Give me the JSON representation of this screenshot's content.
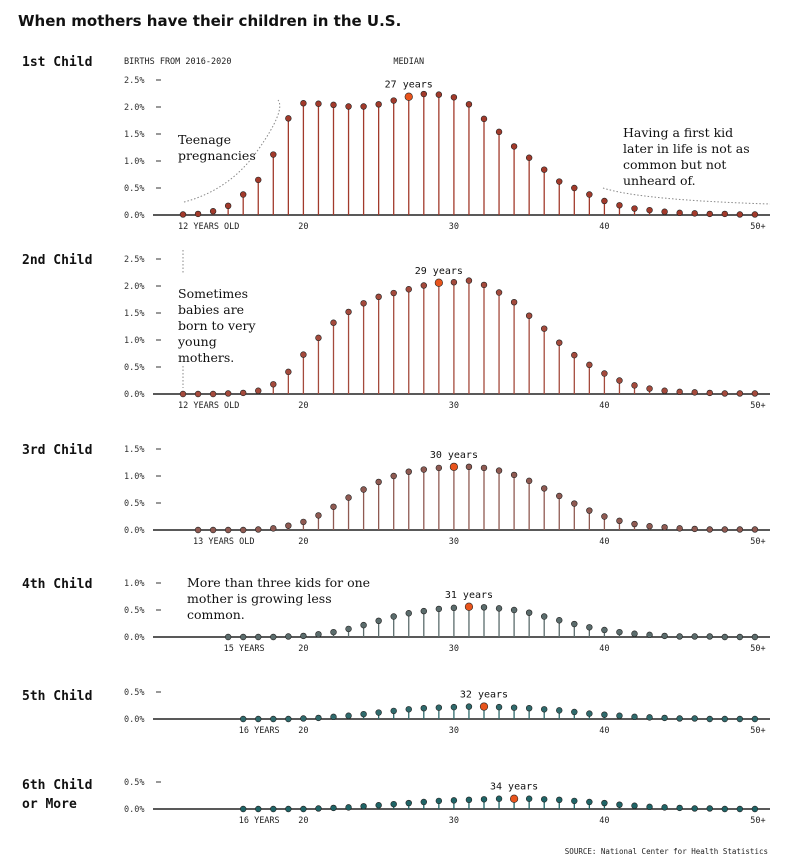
{
  "page": {
    "title": "When mothers have their children in the U.S.",
    "source": "SOURCE: National Center for Health Statistics",
    "births_label": "BIRTHS FROM 2016-2020",
    "median_label": "MEDIAN"
  },
  "colors": {
    "1": "#a23a2b",
    "2": "#a44a3c",
    "3": "#8f5a52",
    "4": "#5b6c6c",
    "5": "#2f6a6c",
    "6": "#1f6466",
    "median": "#e8541c",
    "axis": "#222222",
    "annot": "#888888"
  },
  "chart_data": [
    {
      "type": "lollipop",
      "label": "1st Child",
      "start_label": "12 YEARS OLD",
      "x_ticks": [
        "20",
        "30",
        "40",
        "50+"
      ],
      "yticks": [
        "0.0%",
        "0.5%",
        "1.0%",
        "1.5%",
        "2.0%",
        "2.5%"
      ],
      "ylim": [
        0,
        2.5
      ],
      "median_age": 27,
      "median_text": "27 years",
      "x": [
        12,
        13,
        14,
        15,
        16,
        17,
        18,
        19,
        20,
        21,
        22,
        23,
        24,
        25,
        26,
        27,
        28,
        29,
        30,
        31,
        32,
        33,
        34,
        35,
        36,
        37,
        38,
        39,
        40,
        41,
        42,
        43,
        44,
        45,
        46,
        47,
        48,
        49,
        50
      ],
      "values": [
        0.01,
        0.02,
        0.07,
        0.17,
        0.38,
        0.65,
        1.12,
        1.79,
        2.07,
        2.06,
        2.04,
        2.01,
        2.01,
        2.05,
        2.12,
        2.19,
        2.24,
        2.23,
        2.18,
        2.05,
        1.78,
        1.54,
        1.27,
        1.06,
        0.84,
        0.62,
        0.5,
        0.38,
        0.26,
        0.18,
        0.12,
        0.09,
        0.06,
        0.04,
        0.03,
        0.02,
        0.02,
        0.01,
        0.01
      ]
    },
    {
      "type": "lollipop",
      "label": "2nd Child",
      "start_label": "12 YEARS OLD",
      "x_ticks": [
        "20",
        "30",
        "40",
        "50+"
      ],
      "yticks": [
        "0.0%",
        "0.5%",
        "1.0%",
        "1.5%",
        "2.0%",
        "2.5%"
      ],
      "ylim": [
        0,
        2.5
      ],
      "median_age": 29,
      "median_text": "29 years",
      "x": [
        12,
        13,
        14,
        15,
        16,
        17,
        18,
        19,
        20,
        21,
        22,
        23,
        24,
        25,
        26,
        27,
        28,
        29,
        30,
        31,
        32,
        33,
        34,
        35,
        36,
        37,
        38,
        39,
        40,
        41,
        42,
        43,
        44,
        45,
        46,
        47,
        48,
        49,
        50
      ],
      "values": [
        0,
        0,
        0,
        0.01,
        0.02,
        0.06,
        0.18,
        0.41,
        0.73,
        1.04,
        1.32,
        1.52,
        1.68,
        1.8,
        1.87,
        1.94,
        2.01,
        2.06,
        2.07,
        2.1,
        2.02,
        1.88,
        1.7,
        1.45,
        1.21,
        0.95,
        0.72,
        0.54,
        0.38,
        0.25,
        0.16,
        0.1,
        0.06,
        0.04,
        0.03,
        0.02,
        0.01,
        0.01,
        0.01
      ]
    },
    {
      "type": "lollipop",
      "label": "3rd Child",
      "start_label": "13 YEARS OLD",
      "x_ticks": [
        "20",
        "30",
        "40",
        "50+"
      ],
      "yticks": [
        "0.0%",
        "0.5%",
        "1.0%",
        "1.5%"
      ],
      "ylim": [
        0,
        1.5
      ],
      "median_age": 30,
      "median_text": "30 years",
      "x": [
        13,
        14,
        15,
        16,
        17,
        18,
        19,
        20,
        21,
        22,
        23,
        24,
        25,
        26,
        27,
        28,
        29,
        30,
        31,
        32,
        33,
        34,
        35,
        36,
        37,
        38,
        39,
        40,
        41,
        42,
        43,
        44,
        45,
        46,
        47,
        48,
        49,
        50
      ],
      "values": [
        0,
        0,
        0,
        0,
        0.01,
        0.03,
        0.08,
        0.15,
        0.27,
        0.43,
        0.6,
        0.75,
        0.89,
        1.0,
        1.08,
        1.12,
        1.15,
        1.17,
        1.17,
        1.15,
        1.1,
        1.02,
        0.91,
        0.77,
        0.63,
        0.49,
        0.36,
        0.25,
        0.17,
        0.11,
        0.07,
        0.05,
        0.03,
        0.02,
        0.01,
        0.01,
        0.01,
        0.01
      ]
    },
    {
      "type": "lollipop",
      "label": "4th Child",
      "start_label": "15 YEARS",
      "x_ticks": [
        "20",
        "30",
        "40",
        "50+"
      ],
      "yticks": [
        "0.0%",
        "0.5%",
        "1.0%"
      ],
      "ylim": [
        0,
        1.0
      ],
      "median_age": 31,
      "median_text": "31 years",
      "x": [
        15,
        16,
        17,
        18,
        19,
        20,
        21,
        22,
        23,
        24,
        25,
        26,
        27,
        28,
        29,
        30,
        31,
        32,
        33,
        34,
        35,
        36,
        37,
        38,
        39,
        40,
        41,
        42,
        43,
        44,
        45,
        46,
        47,
        48,
        49,
        50
      ],
      "values": [
        0,
        0,
        0,
        0,
        0.01,
        0.02,
        0.05,
        0.09,
        0.15,
        0.22,
        0.3,
        0.38,
        0.44,
        0.48,
        0.52,
        0.54,
        0.56,
        0.55,
        0.53,
        0.5,
        0.45,
        0.38,
        0.31,
        0.24,
        0.18,
        0.13,
        0.09,
        0.06,
        0.04,
        0.02,
        0.01,
        0.01,
        0.01,
        0,
        0,
        0
      ]
    },
    {
      "type": "lollipop",
      "label": "5th Child",
      "start_label": "16 YEARS",
      "x_ticks": [
        "20",
        "30",
        "40",
        "50+"
      ],
      "yticks": [
        "0.0%",
        "0.5%"
      ],
      "ylim": [
        0,
        0.5
      ],
      "median_age": 32,
      "median_text": "32 years",
      "x": [
        16,
        17,
        18,
        19,
        20,
        21,
        22,
        23,
        24,
        25,
        26,
        27,
        28,
        29,
        30,
        31,
        32,
        33,
        34,
        35,
        36,
        37,
        38,
        39,
        40,
        41,
        42,
        43,
        44,
        45,
        46,
        47,
        48,
        49,
        50
      ],
      "values": [
        0,
        0,
        0,
        0,
        0.01,
        0.02,
        0.04,
        0.06,
        0.09,
        0.12,
        0.15,
        0.18,
        0.2,
        0.21,
        0.22,
        0.23,
        0.23,
        0.22,
        0.21,
        0.2,
        0.18,
        0.16,
        0.13,
        0.1,
        0.08,
        0.06,
        0.04,
        0.03,
        0.02,
        0.01,
        0.01,
        0,
        0,
        0,
        0
      ]
    },
    {
      "type": "lollipop",
      "label": "6th Child",
      "label2": "or More",
      "start_label": "16 YEARS",
      "x_ticks": [
        "20",
        "30",
        "40",
        "50+"
      ],
      "yticks": [
        "0.0%",
        "0.5%"
      ],
      "ylim": [
        0,
        0.5
      ],
      "median_age": 34,
      "median_text": "34 years",
      "x": [
        16,
        17,
        18,
        19,
        20,
        21,
        22,
        23,
        24,
        25,
        26,
        27,
        28,
        29,
        30,
        31,
        32,
        33,
        34,
        35,
        36,
        37,
        38,
        39,
        40,
        41,
        42,
        43,
        44,
        45,
        46,
        47,
        48,
        49,
        50
      ],
      "values": [
        0,
        0,
        0,
        0,
        0,
        0.01,
        0.02,
        0.03,
        0.05,
        0.07,
        0.09,
        0.11,
        0.13,
        0.15,
        0.16,
        0.17,
        0.18,
        0.19,
        0.19,
        0.19,
        0.18,
        0.17,
        0.15,
        0.13,
        0.11,
        0.08,
        0.06,
        0.04,
        0.03,
        0.02,
        0.01,
        0.01,
        0,
        0,
        0
      ]
    }
  ],
  "annotations": {
    "teen": "Teenage\npregnancies",
    "later": "Having a first kid\nlater in life is not as\ncommon but not\nunheard of.",
    "young": "Sometimes\nbabies are\nborn to very\nyoung\nmothers.",
    "more_three": "More than three kids for one\nmother is growing less\ncommon."
  }
}
